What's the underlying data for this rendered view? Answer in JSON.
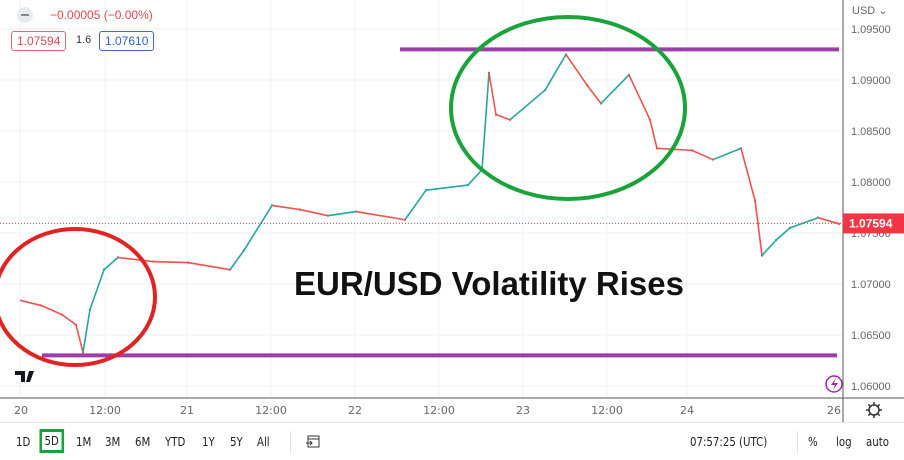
{
  "header": {
    "change": "−0.00005 (−0.00%)",
    "bid": "1.07594",
    "spread": "1.6",
    "ask": "1.07610"
  },
  "price_axis": {
    "currency": "USD ⌄"
  },
  "toolbar": {
    "ranges": [
      "1D",
      "5D",
      "1M",
      "3M",
      "6M",
      "YTD",
      "1Y",
      "5Y",
      "All"
    ],
    "selected_range": "5D",
    "time": "07:57:25 (UTC)",
    "percent": "%",
    "log": "log",
    "auto": "auto"
  },
  "chart_data": {
    "type": "line",
    "title": "EUR/USD Volatility Rises",
    "ylim": [
      1.0585,
      1.0965
    ],
    "y_ticks": [
      "1.09500",
      "1.09000",
      "1.08500",
      "1.08000",
      "1.07500",
      "1.07000",
      "1.06500",
      "1.06000"
    ],
    "x_ticks": [
      "20",
      "12:00",
      "21",
      "12:00",
      "22",
      "12:00",
      "23",
      "12:00",
      "24",
      "26"
    ],
    "last_price": "1.07594",
    "last_price_value": 1.07594,
    "horizontal_lines": [
      {
        "value": 1.093,
        "color": "#9c3ea8"
      },
      {
        "value": 1.063,
        "color": "#9c3ea8"
      }
    ],
    "highlights": [
      {
        "color": "#e02424",
        "region": "low near 20 09:00"
      },
      {
        "color": "#1aa33a",
        "region": "high on 23"
      }
    ],
    "colors": {
      "up": "#26a69a",
      "down": "#ef5350",
      "last_price": "#f23645"
    },
    "series": [
      {
        "x": [
          "20 00:00",
          "20 03:00",
          "20 06:00",
          "20 08:00",
          "20 09:00",
          "20 10:00",
          "20 12:00",
          "20 14:00",
          "20 19:00",
          "21 00:00",
          "21 06:00",
          "21 08:00",
          "21 12:00",
          "21 16:00",
          "21 20:00",
          "22 00:00",
          "22 07:00",
          "22 10:00",
          "22 16:00",
          "22 18:00",
          "22 19:00",
          "22 20:00",
          "22 22:00",
          "23 03:00",
          "23 06:00",
          "23 09:00",
          "23 11:00",
          "23 15:00",
          "23 18:00",
          "23 19:00",
          "24 00:00",
          "24 03:00",
          "24 07:00",
          "24 09:00",
          "24 10:00",
          "24 12:00",
          "24 14:00",
          "24 18:00",
          "24 21:00"
        ],
        "y": [
          1.0684,
          1.0679,
          1.067,
          1.066,
          1.0633,
          1.0675,
          1.0714,
          1.0726,
          1.0722,
          1.0721,
          1.0714,
          1.0733,
          1.0777,
          1.0773,
          1.0767,
          1.0771,
          1.0763,
          1.0792,
          1.0797,
          1.0812,
          1.0907,
          1.0866,
          1.0861,
          1.089,
          1.0925,
          1.0895,
          1.0877,
          1.0905,
          1.0861,
          1.0833,
          1.0831,
          1.0822,
          1.0833,
          1.0782,
          1.0728,
          1.0743,
          1.0755,
          1.0765,
          1.0759
        ]
      }
    ]
  }
}
